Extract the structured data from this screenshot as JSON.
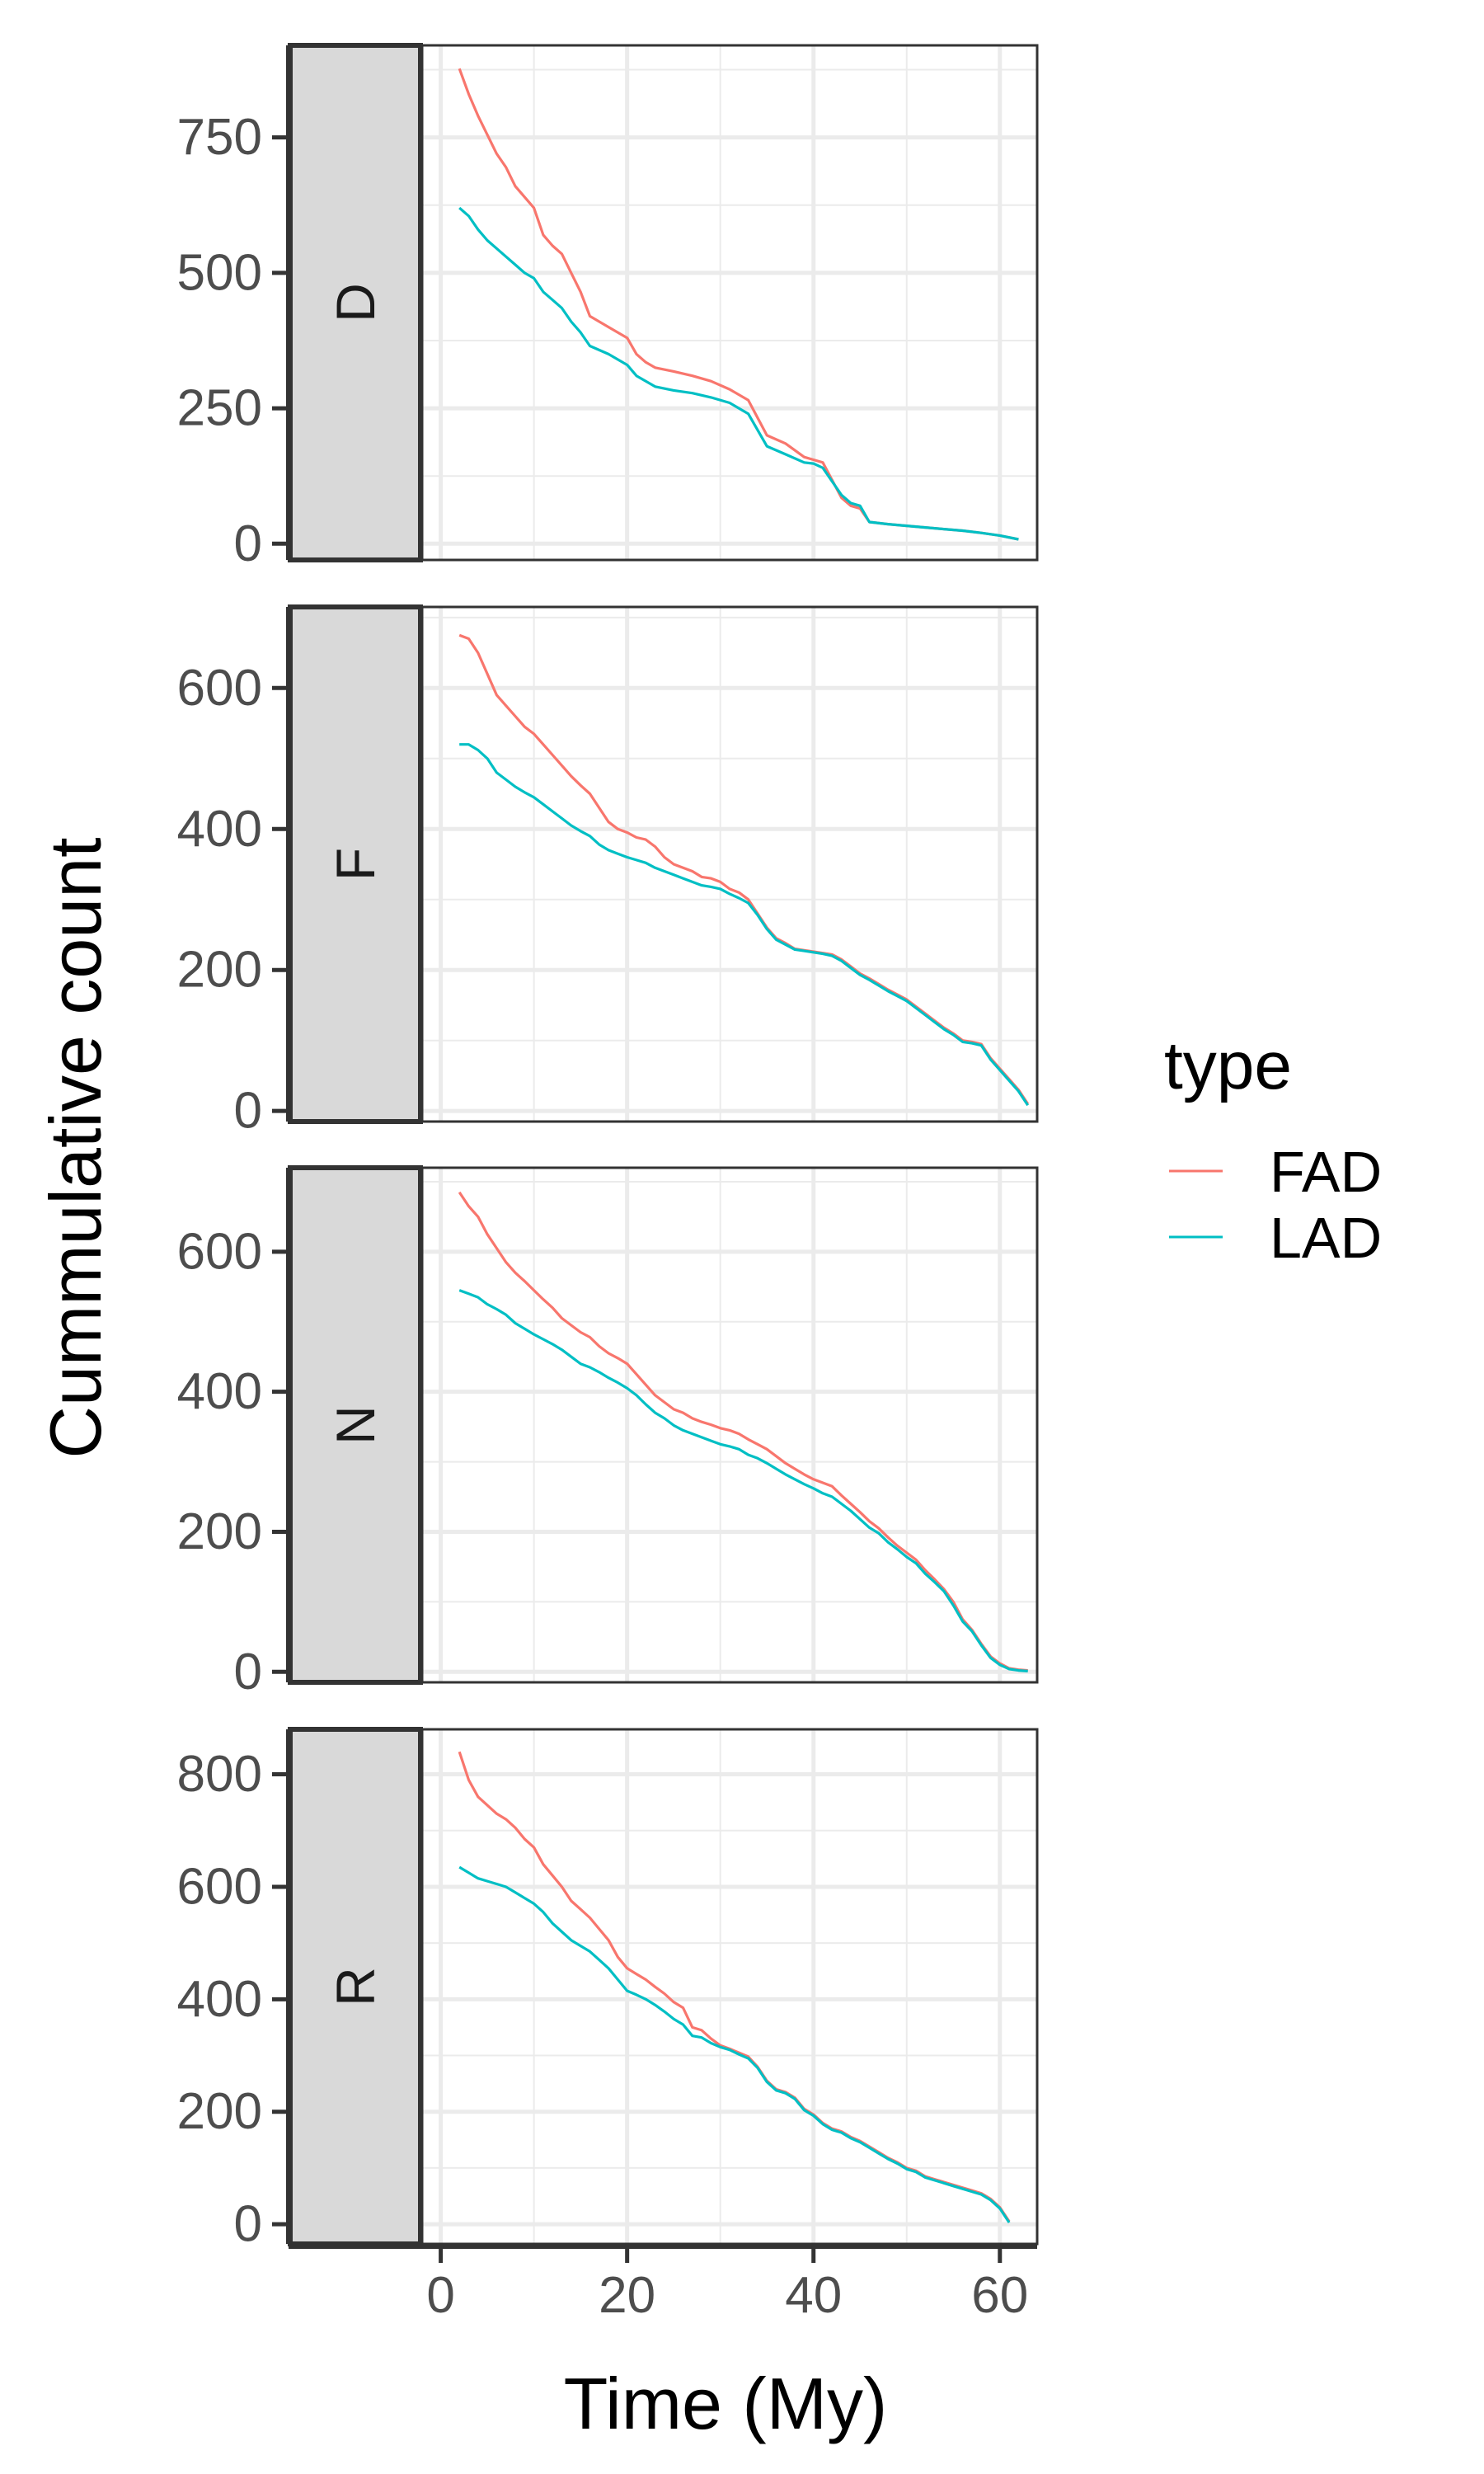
{
  "chart_data": {
    "type": "line",
    "facet_direction": "rows",
    "strip_position": "left",
    "xlabel": "Time (My)",
    "ylabel": "Cummulative count",
    "xlim": [
      -2,
      64
    ],
    "x_ticks": [
      0,
      20,
      40,
      60
    ],
    "x_tick_labels": [
      "0",
      "20",
      "40",
      "60"
    ],
    "grid": true,
    "legend": {
      "title": "type",
      "position": "right",
      "entries": [
        {
          "name": "FAD",
          "color": "#F8766D"
        },
        {
          "name": "LAD",
          "color": "#00BFC4"
        }
      ]
    },
    "panels": [
      {
        "label": "D",
        "ylim": [
          -30,
          920
        ],
        "y_ticks": [
          0,
          250,
          500,
          750
        ],
        "y_tick_labels": [
          "0",
          "250",
          "500",
          "750"
        ],
        "series": [
          {
            "name": "FAD",
            "color": "#F8766D",
            "x": [
              2,
              3,
              4,
              5,
              6,
              7,
              8,
              9,
              10,
              11,
              12,
              13,
              14,
              15,
              16,
              18,
              20,
              21,
              22,
              23,
              25,
              27,
              29,
              31,
              33,
              35,
              37,
              39,
              40,
              41,
              43,
              44,
              45,
              46,
              48,
              50,
              52,
              54,
              56,
              58,
              60,
              62
            ],
            "y": [
              877,
              830,
              790,
              755,
              720,
              695,
              660,
              640,
              620,
              570,
              550,
              535,
              500,
              465,
              420,
              400,
              380,
              350,
              335,
              325,
              318,
              310,
              300,
              285,
              265,
              200,
              185,
              160,
              155,
              150,
              85,
              70,
              65,
              40,
              36,
              33,
              30,
              27,
              24,
              20,
              15,
              8
            ]
          },
          {
            "name": "LAD",
            "color": "#00BFC4",
            "x": [
              2,
              3,
              4,
              5,
              6,
              7,
              8,
              9,
              10,
              11,
              12,
              13,
              14,
              15,
              16,
              18,
              20,
              21,
              22,
              23,
              25,
              27,
              29,
              31,
              33,
              35,
              37,
              39,
              40,
              41,
              43,
              44,
              45,
              46,
              48,
              50,
              52,
              54,
              56,
              58,
              60,
              62
            ],
            "y": [
              620,
              605,
              580,
              560,
              545,
              530,
              515,
              500,
              490,
              465,
              450,
              435,
              410,
              390,
              365,
              350,
              330,
              310,
              300,
              290,
              283,
              278,
              270,
              260,
              240,
              180,
              165,
              150,
              148,
              140,
              90,
              75,
              70,
              40,
              36,
              33,
              30,
              27,
              24,
              20,
              15,
              8
            ]
          }
        ]
      },
      {
        "label": "F",
        "ylim": [
          -15,
          715
        ],
        "y_ticks": [
          0,
          200,
          400,
          600
        ],
        "y_tick_labels": [
          "0",
          "200",
          "400",
          "600"
        ],
        "series": [
          {
            "name": "FAD",
            "color": "#F8766D",
            "x": [
              2,
              3,
              4,
              5,
              6,
              7,
              8,
              9,
              10,
              11,
              12,
              13,
              14,
              15,
              16,
              17,
              18,
              19,
              20,
              21,
              22,
              23,
              24,
              25,
              26,
              27,
              28,
              29,
              30,
              31,
              32,
              33,
              34,
              35,
              36,
              37,
              38,
              39,
              40,
              41,
              42,
              43,
              44,
              45,
              46,
              47,
              48,
              49,
              50,
              51,
              52,
              53,
              54,
              55,
              56,
              57,
              58,
              59,
              60,
              61,
              62,
              63
            ],
            "y": [
              675,
              670,
              650,
              620,
              590,
              575,
              560,
              545,
              535,
              520,
              505,
              490,
              475,
              462,
              450,
              430,
              410,
              400,
              395,
              388,
              385,
              375,
              360,
              350,
              345,
              340,
              332,
              330,
              325,
              315,
              310,
              300,
              280,
              260,
              245,
              238,
              230,
              228,
              226,
              224,
              222,
              215,
              205,
              195,
              188,
              180,
              172,
              165,
              158,
              148,
              138,
              128,
              118,
              110,
              100,
              98,
              95,
              75,
              60,
              45,
              30,
              10
            ]
          },
          {
            "name": "LAD",
            "color": "#00BFC4",
            "x": [
              2,
              3,
              4,
              5,
              6,
              7,
              8,
              9,
              10,
              11,
              12,
              13,
              14,
              15,
              16,
              17,
              18,
              19,
              20,
              21,
              22,
              23,
              24,
              25,
              26,
              27,
              28,
              29,
              30,
              31,
              32,
              33,
              34,
              35,
              36,
              37,
              38,
              39,
              40,
              41,
              42,
              43,
              44,
              45,
              46,
              47,
              48,
              49,
              50,
              51,
              52,
              53,
              54,
              55,
              56,
              57,
              58,
              59,
              60,
              61,
              62,
              63
            ],
            "y": [
              520,
              520,
              512,
              500,
              480,
              470,
              460,
              452,
              445,
              435,
              425,
              415,
              405,
              397,
              390,
              378,
              370,
              365,
              360,
              356,
              352,
              345,
              340,
              335,
              330,
              325,
              320,
              318,
              315,
              308,
              302,
              295,
              278,
              258,
              243,
              236,
              229,
              227,
              225,
              223,
              220,
              213,
              203,
              193,
              186,
              178,
              170,
              163,
              156,
              146,
              136,
              126,
              116,
              108,
              98,
              96,
              93,
              73,
              58,
              43,
              28,
              8
            ]
          }
        ]
      },
      {
        "label": "N",
        "ylim": [
          -15,
          720
        ],
        "y_ticks": [
          0,
          200,
          400,
          600
        ],
        "y_tick_labels": [
          "0",
          "200",
          "400",
          "600"
        ],
        "series": [
          {
            "name": "FAD",
            "color": "#F8766D",
            "x": [
              2,
              3,
              4,
              5,
              6,
              7,
              8,
              9,
              10,
              11,
              12,
              13,
              14,
              15,
              16,
              17,
              18,
              19,
              20,
              21,
              22,
              23,
              24,
              25,
              26,
              27,
              28,
              29,
              30,
              31,
              32,
              33,
              34,
              35,
              36,
              37,
              38,
              39,
              40,
              41,
              42,
              43,
              44,
              45,
              46,
              47,
              48,
              49,
              50,
              51,
              52,
              53,
              54,
              55,
              56,
              57,
              58,
              59,
              60,
              61,
              62,
              63
            ],
            "y": [
              685,
              665,
              650,
              625,
              605,
              585,
              570,
              558,
              545,
              532,
              520,
              505,
              495,
              485,
              478,
              465,
              455,
              448,
              440,
              425,
              410,
              395,
              385,
              375,
              370,
              362,
              357,
              353,
              348,
              345,
              340,
              332,
              325,
              318,
              308,
              298,
              290,
              282,
              275,
              270,
              265,
              252,
              240,
              228,
              215,
              205,
              192,
              180,
              170,
              160,
              145,
              132,
              118,
              100,
              75,
              60,
              40,
              22,
              12,
              5,
              3,
              2
            ]
          },
          {
            "name": "LAD",
            "color": "#00BFC4",
            "x": [
              2,
              3,
              4,
              5,
              6,
              7,
              8,
              9,
              10,
              11,
              12,
              13,
              14,
              15,
              16,
              17,
              18,
              19,
              20,
              21,
              22,
              23,
              24,
              25,
              26,
              27,
              28,
              29,
              30,
              31,
              32,
              33,
              34,
              35,
              36,
              37,
              38,
              39,
              40,
              41,
              42,
              43,
              44,
              45,
              46,
              47,
              48,
              49,
              50,
              51,
              52,
              53,
              54,
              55,
              56,
              57,
              58,
              59,
              60,
              61,
              62,
              63
            ],
            "y": [
              545,
              540,
              535,
              525,
              518,
              510,
              498,
              490,
              482,
              475,
              468,
              460,
              450,
              440,
              435,
              428,
              420,
              413,
              405,
              395,
              382,
              370,
              362,
              352,
              345,
              340,
              335,
              330,
              325,
              322,
              318,
              310,
              305,
              298,
              290,
              282,
              275,
              268,
              262,
              255,
              250,
              240,
              230,
              218,
              206,
              198,
              185,
              175,
              164,
              155,
              140,
              128,
              115,
              95,
              72,
              58,
              38,
              20,
              10,
              4,
              2,
              1
            ]
          }
        ]
      },
      {
        "label": "R",
        "ylim": [
          -35,
          880
        ],
        "y_ticks": [
          0,
          200,
          400,
          600,
          800
        ],
        "y_tick_labels": [
          "0",
          "200",
          "400",
          "600",
          "800"
        ],
        "series": [
          {
            "name": "FAD",
            "color": "#F8766D",
            "x": [
              2,
              3,
              4,
              5,
              6,
              7,
              8,
              9,
              10,
              11,
              12,
              13,
              14,
              15,
              16,
              17,
              18,
              19,
              20,
              21,
              22,
              23,
              24,
              25,
              26,
              27,
              28,
              29,
              30,
              31,
              32,
              33,
              34,
              35,
              36,
              37,
              38,
              39,
              40,
              41,
              42,
              43,
              44,
              45,
              46,
              47,
              48,
              49,
              50,
              51,
              52,
              53,
              54,
              55,
              56,
              57,
              58,
              59,
              60,
              61
            ],
            "y": [
              840,
              790,
              760,
              745,
              730,
              720,
              705,
              685,
              670,
              640,
              620,
              600,
              575,
              560,
              545,
              525,
              505,
              475,
              455,
              445,
              435,
              422,
              410,
              395,
              385,
              350,
              345,
              330,
              318,
              312,
              305,
              298,
              280,
              255,
              240,
              235,
              225,
              205,
              195,
              180,
              170,
              165,
              155,
              148,
              138,
              128,
              118,
              110,
              100,
              95,
              85,
              80,
              75,
              70,
              65,
              60,
              55,
              45,
              30,
              5
            ]
          },
          {
            "name": "LAD",
            "color": "#00BFC4",
            "x": [
              2,
              3,
              4,
              5,
              6,
              7,
              8,
              9,
              10,
              11,
              12,
              13,
              14,
              15,
              16,
              17,
              18,
              19,
              20,
              21,
              22,
              23,
              24,
              25,
              26,
              27,
              28,
              29,
              30,
              31,
              32,
              33,
              34,
              35,
              36,
              37,
              38,
              39,
              40,
              41,
              42,
              43,
              44,
              45,
              46,
              47,
              48,
              49,
              50,
              51,
              52,
              53,
              54,
              55,
              56,
              57,
              58,
              59,
              60,
              61
            ],
            "y": [
              635,
              625,
              615,
              610,
              605,
              600,
              590,
              580,
              570,
              555,
              535,
              520,
              505,
              495,
              485,
              470,
              455,
              435,
              415,
              408,
              400,
              390,
              378,
              365,
              355,
              335,
              332,
              322,
              315,
              310,
              302,
              295,
              278,
              253,
              238,
              233,
              223,
              203,
              193,
              178,
              168,
              163,
              153,
              146,
              136,
              126,
              116,
              108,
              98,
              93,
              83,
              78,
              73,
              68,
              63,
              58,
              53,
              43,
              28,
              3
            ]
          }
        ]
      }
    ]
  }
}
